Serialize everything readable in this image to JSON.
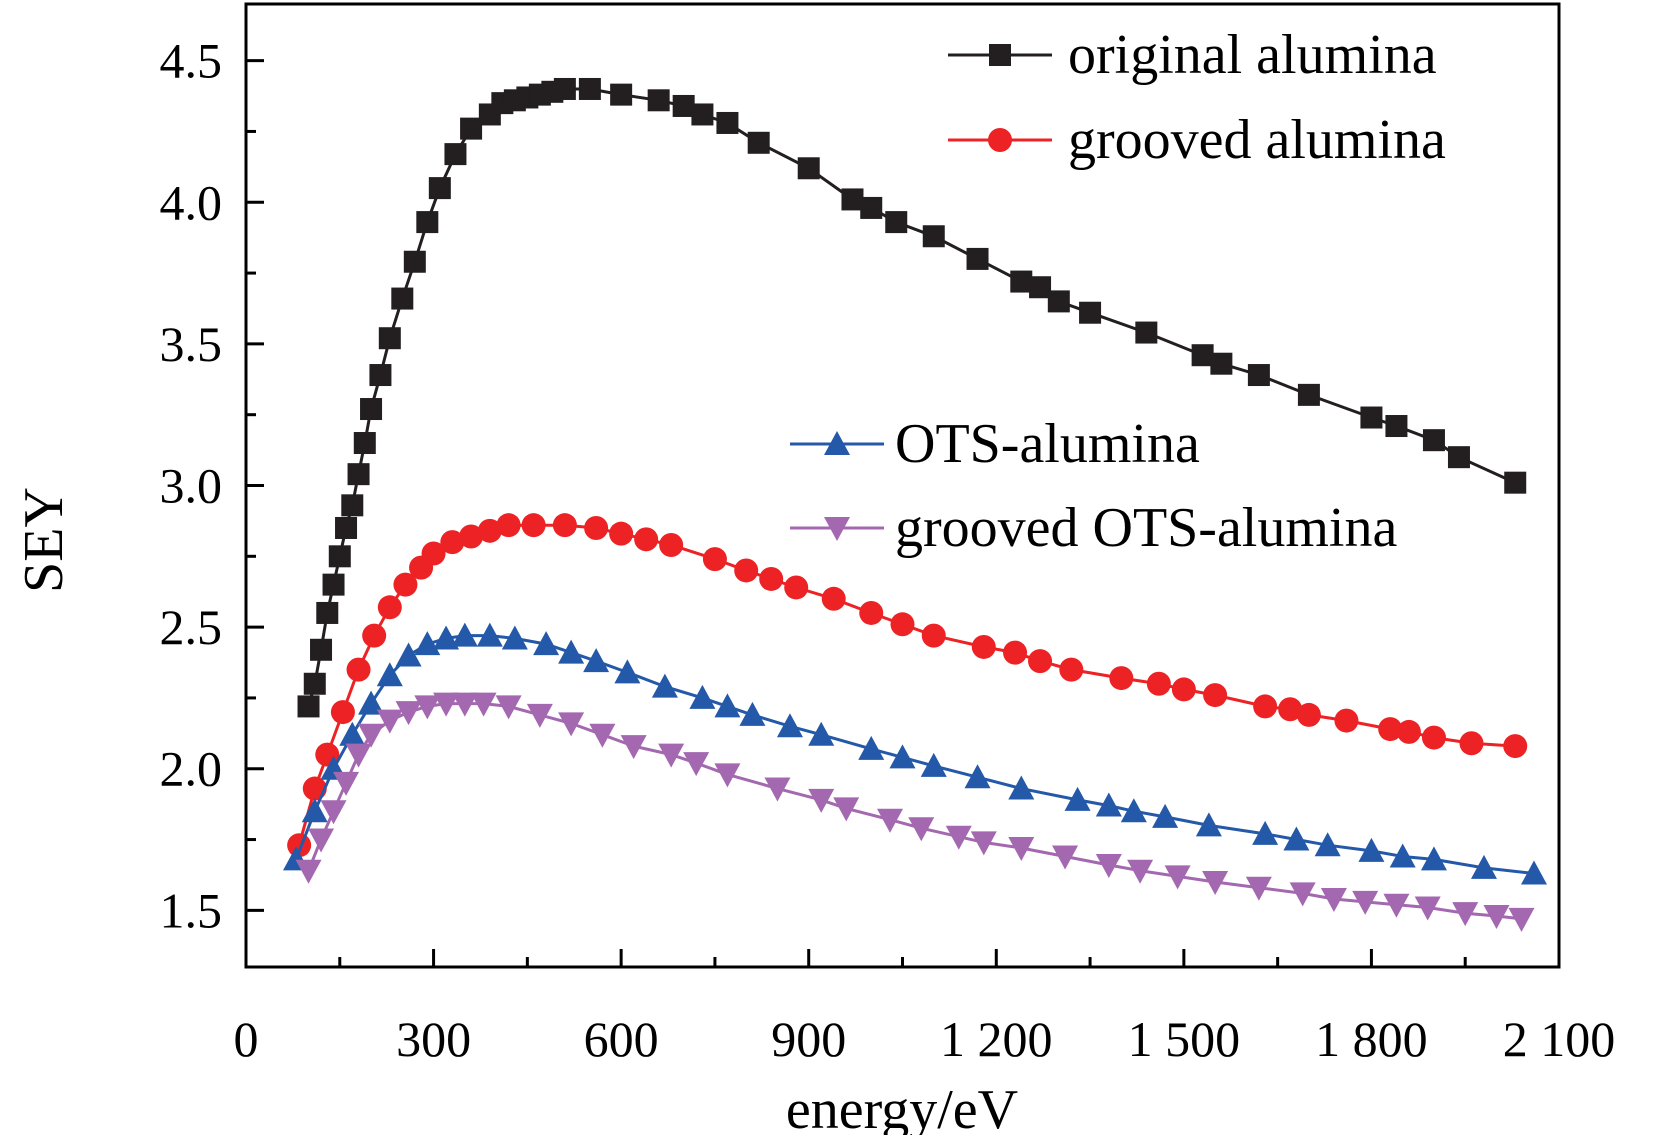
{
  "chart_data": {
    "type": "line",
    "title": "",
    "xlabel": "energy/eV",
    "ylabel": "SEY",
    "xlim": [
      0,
      2100
    ],
    "ylim": [
      1.3,
      4.7
    ],
    "x_ticks": [
      0,
      300,
      600,
      900,
      1200,
      1500,
      1800,
      2100
    ],
    "x_tick_labels": [
      "0",
      "300",
      "600",
      "900",
      "1 200",
      "1 500",
      "1 800",
      "2 100"
    ],
    "y_ticks": [
      1.5,
      2.0,
      2.5,
      3.0,
      3.5,
      4.0,
      4.5
    ],
    "y_tick_labels": [
      "1.5",
      "2.0",
      "2.5",
      "3.0",
      "3.5",
      "4.0",
      "4.5"
    ],
    "grid": false,
    "legend_placement": "top-right",
    "series": [
      {
        "name": "original alumina",
        "color": "#231f20",
        "marker": "square",
        "x": [
          100,
          110,
          120,
          130,
          140,
          150,
          160,
          170,
          180,
          190,
          200,
          215,
          230,
          250,
          270,
          290,
          310,
          335,
          360,
          390,
          410,
          430,
          450,
          470,
          490,
          510,
          550,
          600,
          660,
          700,
          730,
          770,
          820,
          900,
          970,
          1000,
          1040,
          1100,
          1170,
          1240,
          1270,
          1300,
          1350,
          1440,
          1530,
          1560,
          1620,
          1700,
          1800,
          1840,
          1900,
          1940,
          2030
        ],
        "y": [
          2.22,
          2.3,
          2.42,
          2.55,
          2.65,
          2.75,
          2.85,
          2.93,
          3.04,
          3.15,
          3.27,
          3.39,
          3.52,
          3.66,
          3.79,
          3.93,
          4.05,
          4.17,
          4.26,
          4.31,
          4.35,
          4.36,
          4.37,
          4.38,
          4.39,
          4.4,
          4.4,
          4.38,
          4.36,
          4.34,
          4.31,
          4.28,
          4.21,
          4.12,
          4.01,
          3.98,
          3.93,
          3.88,
          3.8,
          3.72,
          3.7,
          3.65,
          3.61,
          3.54,
          3.46,
          3.43,
          3.39,
          3.32,
          3.24,
          3.21,
          3.16,
          3.1,
          3.01
        ]
      },
      {
        "name": "grooved alumina",
        "color": "#ed2224",
        "marker": "circle",
        "x": [
          85,
          110,
          130,
          155,
          180,
          205,
          230,
          255,
          280,
          300,
          330,
          360,
          390,
          420,
          460,
          510,
          560,
          600,
          640,
          680,
          750,
          800,
          840,
          880,
          940,
          1000,
          1050,
          1100,
          1180,
          1230,
          1270,
          1320,
          1400,
          1460,
          1500,
          1550,
          1630,
          1670,
          1700,
          1760,
          1830,
          1860,
          1900,
          1960,
          2030
        ],
        "y": [
          1.73,
          1.93,
          2.05,
          2.2,
          2.35,
          2.47,
          2.57,
          2.65,
          2.71,
          2.76,
          2.8,
          2.82,
          2.84,
          2.86,
          2.86,
          2.86,
          2.85,
          2.83,
          2.81,
          2.79,
          2.74,
          2.7,
          2.67,
          2.64,
          2.6,
          2.55,
          2.51,
          2.47,
          2.43,
          2.41,
          2.38,
          2.35,
          2.32,
          2.3,
          2.28,
          2.26,
          2.22,
          2.21,
          2.19,
          2.17,
          2.14,
          2.13,
          2.11,
          2.09,
          2.08
        ]
      },
      {
        "name": "OTS-alumina",
        "color": "#2458a8",
        "marker": "triangle-up",
        "x": [
          80,
          110,
          140,
          170,
          200,
          230,
          260,
          290,
          320,
          350,
          390,
          430,
          480,
          520,
          560,
          610,
          670,
          730,
          770,
          810,
          870,
          920,
          1000,
          1050,
          1100,
          1170,
          1240,
          1330,
          1380,
          1420,
          1470,
          1540,
          1630,
          1680,
          1730,
          1800,
          1850,
          1900,
          1980,
          2060
        ],
        "y": [
          1.68,
          1.85,
          2.0,
          2.12,
          2.23,
          2.33,
          2.4,
          2.44,
          2.46,
          2.47,
          2.47,
          2.46,
          2.44,
          2.41,
          2.38,
          2.34,
          2.29,
          2.25,
          2.22,
          2.19,
          2.15,
          2.12,
          2.07,
          2.04,
          2.01,
          1.97,
          1.93,
          1.89,
          1.87,
          1.85,
          1.83,
          1.8,
          1.77,
          1.75,
          1.73,
          1.71,
          1.69,
          1.68,
          1.65,
          1.63
        ]
      },
      {
        "name": "grooved OTS-alumina",
        "color": "#a368b0",
        "marker": "triangle-down",
        "x": [
          100,
          120,
          140,
          160,
          180,
          200,
          230,
          260,
          290,
          320,
          350,
          380,
          420,
          470,
          520,
          570,
          620,
          680,
          720,
          770,
          850,
          920,
          960,
          1030,
          1080,
          1140,
          1180,
          1240,
          1310,
          1380,
          1430,
          1490,
          1550,
          1620,
          1690,
          1740,
          1790,
          1840,
          1890,
          1950,
          2000,
          2040
        ],
        "y": [
          1.64,
          1.75,
          1.85,
          1.95,
          2.05,
          2.12,
          2.17,
          2.2,
          2.22,
          2.23,
          2.23,
          2.23,
          2.22,
          2.19,
          2.16,
          2.12,
          2.08,
          2.05,
          2.02,
          1.98,
          1.93,
          1.89,
          1.86,
          1.82,
          1.79,
          1.76,
          1.74,
          1.72,
          1.69,
          1.66,
          1.64,
          1.62,
          1.6,
          1.58,
          1.56,
          1.54,
          1.53,
          1.52,
          1.51,
          1.49,
          1.48,
          1.47
        ]
      }
    ]
  }
}
